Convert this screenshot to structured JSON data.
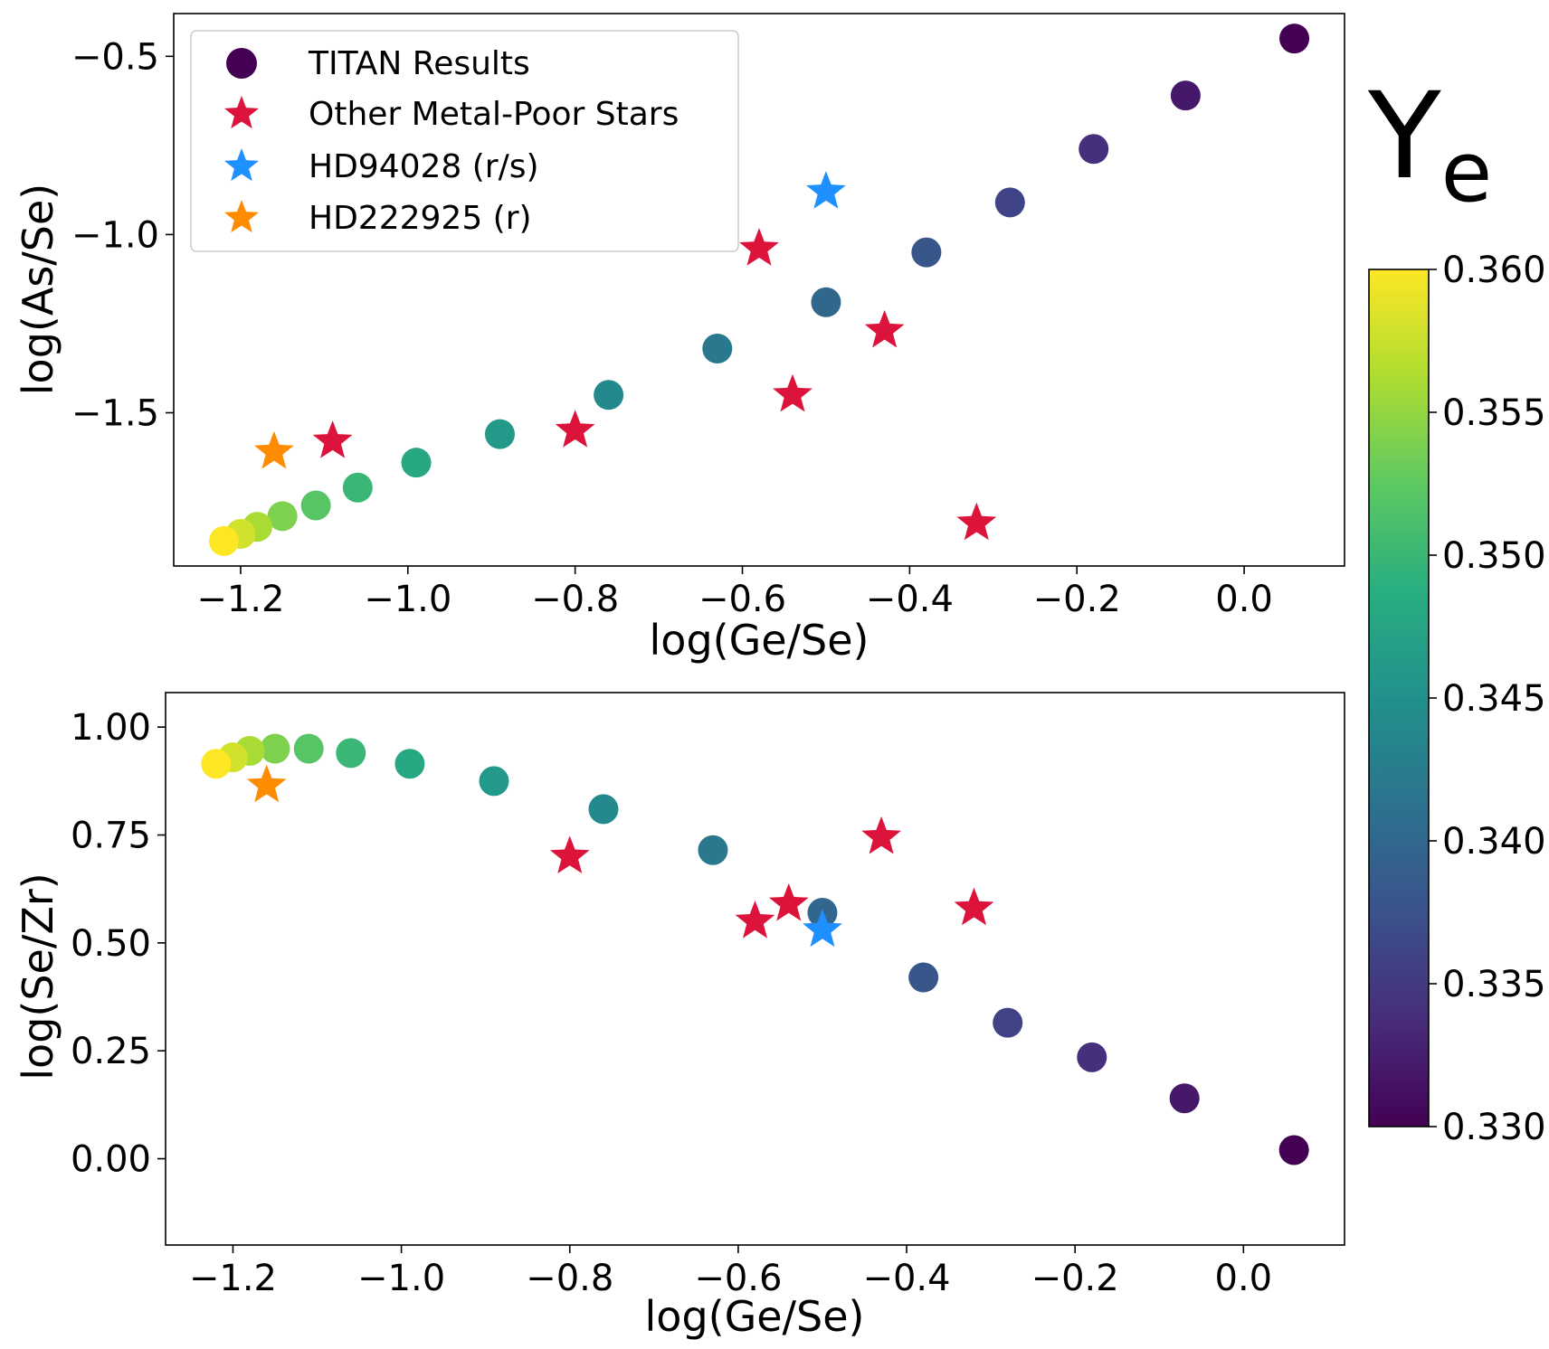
{
  "chart_data": [
    {
      "type": "scatter",
      "title": "",
      "xlabel": "log(Ge/Se)",
      "ylabel": "log(As/Se)",
      "xlim": [
        -1.28,
        0.12
      ],
      "ylim": [
        -1.93,
        -0.38
      ],
      "xticks": [
        -1.2,
        -1.0,
        -0.8,
        -0.6,
        -0.4,
        -0.2,
        0.0
      ],
      "xtick_labels": [
        "−1.2",
        "−1.0",
        "−0.8",
        "−0.6",
        "−0.4",
        "−0.2",
        "0.0"
      ],
      "yticks": [
        -1.5,
        -1.0,
        -0.5
      ],
      "ytick_labels": [
        "−1.5",
        "−1.0",
        "−0.5"
      ],
      "legend_position": "top-left",
      "series": [
        {
          "name": "TITAN Results",
          "marker": "circle",
          "colored_by": "Ye",
          "points": [
            {
              "x": 0.06,
              "y": -0.45,
              "ye": 0.33
            },
            {
              "x": -0.07,
              "y": -0.61,
              "ye": 0.332
            },
            {
              "x": -0.18,
              "y": -0.76,
              "ye": 0.334
            },
            {
              "x": -0.28,
              "y": -0.91,
              "ye": 0.336
            },
            {
              "x": -0.38,
              "y": -1.05,
              "ye": 0.338
            },
            {
              "x": -0.5,
              "y": -1.19,
              "ye": 0.34
            },
            {
              "x": -0.63,
              "y": -1.32,
              "ye": 0.342
            },
            {
              "x": -0.76,
              "y": -1.45,
              "ye": 0.344
            },
            {
              "x": -0.89,
              "y": -1.56,
              "ye": 0.346
            },
            {
              "x": -0.99,
              "y": -1.64,
              "ye": 0.348
            },
            {
              "x": -1.06,
              "y": -1.71,
              "ye": 0.35
            },
            {
              "x": -1.11,
              "y": -1.76,
              "ye": 0.352
            },
            {
              "x": -1.15,
              "y": -1.79,
              "ye": 0.354
            },
            {
              "x": -1.18,
              "y": -1.82,
              "ye": 0.356
            },
            {
              "x": -1.2,
              "y": -1.84,
              "ye": 0.358
            },
            {
              "x": -1.22,
              "y": -1.86,
              "ye": 0.36
            }
          ]
        },
        {
          "name": "Other Metal-Poor Stars",
          "marker": "star",
          "color": "#dc143c",
          "points": [
            {
              "x": -0.58,
              "y": -1.04
            },
            {
              "x": -0.43,
              "y": -1.27
            },
            {
              "x": -0.54,
              "y": -1.45
            },
            {
              "x": -0.8,
              "y": -1.55
            },
            {
              "x": -1.09,
              "y": -1.58
            },
            {
              "x": -0.32,
              "y": -1.81
            }
          ]
        },
        {
          "name": "HD94028 (r/s)",
          "marker": "star",
          "color": "#1e90ff",
          "points": [
            {
              "x": -0.5,
              "y": -0.88
            }
          ]
        },
        {
          "name": "HD222925 (r)",
          "marker": "star",
          "color": "#ff8c00",
          "points": [
            {
              "x": -1.16,
              "y": -1.61
            }
          ]
        }
      ]
    },
    {
      "type": "scatter",
      "title": "",
      "xlabel": "log(Ge/Se)",
      "ylabel": "log(Se/Zr)",
      "xlim": [
        -1.28,
        0.12
      ],
      "ylim": [
        -0.2,
        1.08
      ],
      "xticks": [
        -1.2,
        -1.0,
        -0.8,
        -0.6,
        -0.4,
        -0.2,
        0.0
      ],
      "xtick_labels": [
        "−1.2",
        "−1.0",
        "−0.8",
        "−0.6",
        "−0.4",
        "−0.2",
        "0.0"
      ],
      "yticks": [
        0.0,
        0.25,
        0.5,
        0.75,
        1.0
      ],
      "ytick_labels": [
        "0.00",
        "0.25",
        "0.50",
        "0.75",
        "1.00"
      ],
      "series": [
        {
          "name": "TITAN Results",
          "marker": "circle",
          "colored_by": "Ye",
          "points": [
            {
              "x": 0.06,
              "y": 0.02,
              "ye": 0.33
            },
            {
              "x": -0.07,
              "y": 0.14,
              "ye": 0.332
            },
            {
              "x": -0.18,
              "y": 0.235,
              "ye": 0.334
            },
            {
              "x": -0.28,
              "y": 0.315,
              "ye": 0.336
            },
            {
              "x": -0.38,
              "y": 0.42,
              "ye": 0.338
            },
            {
              "x": -0.5,
              "y": 0.57,
              "ye": 0.34
            },
            {
              "x": -0.63,
              "y": 0.715,
              "ye": 0.342
            },
            {
              "x": -0.76,
              "y": 0.81,
              "ye": 0.344
            },
            {
              "x": -0.89,
              "y": 0.875,
              "ye": 0.346
            },
            {
              "x": -0.99,
              "y": 0.915,
              "ye": 0.348
            },
            {
              "x": -1.06,
              "y": 0.94,
              "ye": 0.35
            },
            {
              "x": -1.11,
              "y": 0.95,
              "ye": 0.352
            },
            {
              "x": -1.15,
              "y": 0.95,
              "ye": 0.354
            },
            {
              "x": -1.18,
              "y": 0.945,
              "ye": 0.356
            },
            {
              "x": -1.2,
              "y": 0.93,
              "ye": 0.358
            },
            {
              "x": -1.22,
              "y": 0.915,
              "ye": 0.36
            }
          ]
        },
        {
          "name": "Other Metal-Poor Stars",
          "marker": "star",
          "color": "#dc143c",
          "points": [
            {
              "x": -0.43,
              "y": 0.745
            },
            {
              "x": -0.8,
              "y": 0.7
            },
            {
              "x": -0.54,
              "y": 0.59
            },
            {
              "x": -0.32,
              "y": 0.58
            },
            {
              "x": -0.58,
              "y": 0.55
            }
          ]
        },
        {
          "name": "HD94028 (r/s)",
          "marker": "star",
          "color": "#1e90ff",
          "points": [
            {
              "x": -0.5,
              "y": 0.53
            }
          ]
        },
        {
          "name": "HD222925 (r)",
          "marker": "star",
          "color": "#ff8c00",
          "points": [
            {
              "x": -1.16,
              "y": 0.865
            }
          ]
        }
      ]
    }
  ],
  "colorbar": {
    "label_main": "Y",
    "label_sub": "e",
    "colormap": "viridis",
    "min": 0.33,
    "max": 0.36,
    "ticks": [
      0.33,
      0.335,
      0.34,
      0.345,
      0.35,
      0.355,
      0.36
    ],
    "tick_labels": [
      "0.330",
      "0.335",
      "0.340",
      "0.345",
      "0.350",
      "0.355",
      "0.360"
    ]
  },
  "legend": {
    "entries": [
      "TITAN Results",
      "Other Metal-Poor Stars",
      "HD94028 (r/s)",
      "HD222925 (r)"
    ],
    "swatch_colors": [
      "#440154",
      "#dc143c",
      "#1e90ff",
      "#ff8c00"
    ]
  }
}
